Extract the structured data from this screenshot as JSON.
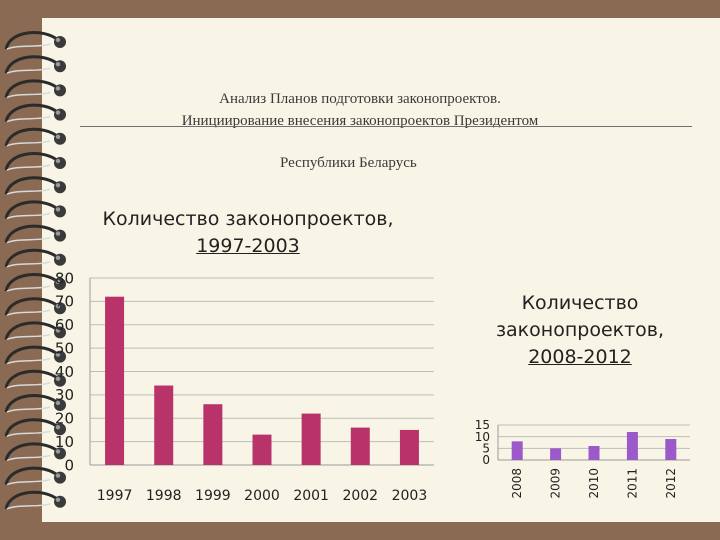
{
  "slide": {
    "title_line1": "Анализ Планов подготовки законопроектов.",
    "title_line2": "Инициирование внесения законопроектов Президентом",
    "subtitle": "Республики Беларусь"
  },
  "colors": {
    "page_bg": "#f8f5e6",
    "frame": "#8a6a52",
    "bar_1997_2003": "#b8336a",
    "bar_2008_2012": "#9b59c9"
  },
  "chart_data": [
    {
      "type": "bar",
      "title_line1": "Количество законопроектов,",
      "title_line2": "1997-2003",
      "categories": [
        "1997",
        "1998",
        "1999",
        "2000",
        "2001",
        "2002",
        "2003"
      ],
      "values": [
        72,
        34,
        26,
        13,
        22,
        16,
        15
      ],
      "yticks": [
        "80",
        "70",
        "60",
        "50",
        "40",
        "30",
        "20",
        "10",
        "0"
      ],
      "ylim": [
        0,
        80
      ],
      "grid": true,
      "legend": "none"
    },
    {
      "type": "bar",
      "title_line1": "Количество",
      "title_line2": "законопроектов,",
      "title_line3": "2008-2012",
      "categories": [
        "2008",
        "2009",
        "2010",
        "2011",
        "2012"
      ],
      "values": [
        8,
        5,
        6,
        12,
        9
      ],
      "yticks": [
        "15",
        "10",
        "5",
        "0"
      ],
      "ylim": [
        0,
        15
      ],
      "grid": true,
      "legend": "none"
    }
  ]
}
